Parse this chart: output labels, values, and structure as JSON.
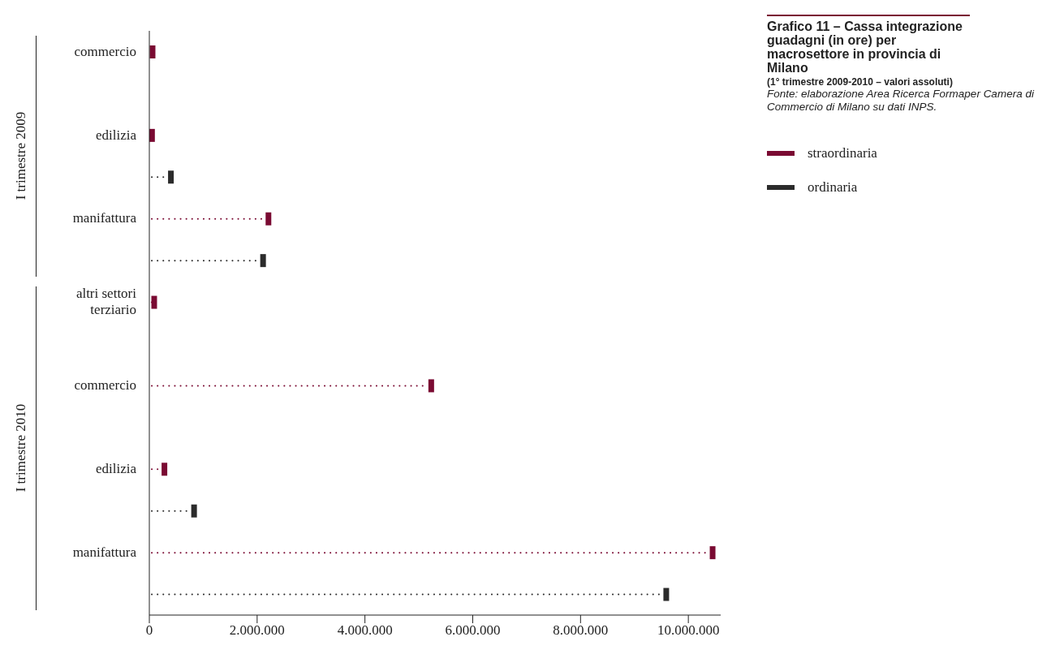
{
  "chart_data": {
    "type": "lollipop",
    "orientation": "horizontal",
    "title": "Grafico 11 – Cassa integrazione guadagni (in ore) per macrosettore in provincia di Milano",
    "subtitle": "(1° trimestre 2009-2010 – valori assoluti)",
    "annotations": [
      "Fonte: elaborazione Area Ricerca Formaper Camera di Commercio di Milano su dati INPS.",
      "I trimestre 2009",
      "I trimestre 2010"
    ],
    "categories": [
      "commercio",
      null,
      "edilizia",
      null,
      "manifattura",
      null,
      "altri settori terziario",
      null,
      "commercio",
      null,
      "edilizia",
      null,
      "manifattura",
      null
    ],
    "series": [
      {
        "name": "straordinaria",
        "color": "#7a0a32",
        "values": [
          60000,
          null,
          50000,
          null,
          2210000,
          null,
          90000,
          null,
          5230000,
          null,
          280000,
          null,
          10450000,
          null
        ]
      },
      {
        "name": "ordinaria",
        "color": "#2b2b2b",
        "values": [
          null,
          null,
          null,
          400000,
          null,
          2110000,
          null,
          null,
          null,
          null,
          null,
          830000,
          null,
          9590000
        ]
      }
    ],
    "xlim": [
      0,
      10600000
    ],
    "xticks": [
      {
        "value": 0,
        "label": "0"
      },
      {
        "value": 2000000,
        "label": "2.000.000"
      },
      {
        "value": 4000000,
        "label": "4.000.000"
      },
      {
        "value": 6000000,
        "label": "6.000.000"
      },
      {
        "value": 8000000,
        "label": "8.000.000"
      },
      {
        "value": 10000000,
        "label": "10.000.000"
      }
    ],
    "line_style": "dotted",
    "legend": "top right",
    "grid": false
  }
}
